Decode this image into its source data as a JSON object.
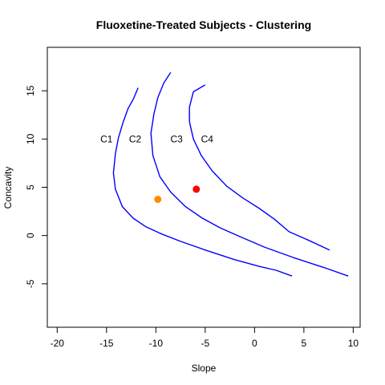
{
  "chart_data": {
    "type": "line",
    "title": "Fluoxetine-Treated Subjects - Clustering",
    "xlabel": "Slope",
    "ylabel": "Concavity",
    "xlim": [
      -21,
      10.7
    ],
    "ylim": [
      -9.5,
      19.5
    ],
    "x_ticks": [
      -20,
      -15,
      -10,
      -5,
      0,
      5,
      10
    ],
    "y_ticks": [
      -5,
      0,
      5,
      10,
      15
    ],
    "grid": false,
    "line_color": "#0000ff",
    "series": [
      {
        "id": "boundary-1",
        "points": [
          [
            -11.8,
            15.3
          ],
          [
            -12.3,
            14.1
          ],
          [
            -12.8,
            13.2
          ],
          [
            -13.3,
            11.8
          ],
          [
            -13.8,
            10.1
          ],
          [
            -14.1,
            8.5
          ],
          [
            -14.3,
            6.5
          ],
          [
            -14.1,
            4.8
          ],
          [
            -13.4,
            3.0
          ],
          [
            -12.3,
            1.8
          ],
          [
            -11.0,
            0.9
          ],
          [
            -9.5,
            0.2
          ],
          [
            -7.5,
            -0.6
          ],
          [
            -5.0,
            -1.5
          ],
          [
            -2.0,
            -2.5
          ],
          [
            0.5,
            -3.2
          ],
          [
            2.2,
            -3.6
          ],
          [
            3.8,
            -4.2
          ]
        ]
      },
      {
        "id": "boundary-2",
        "points": [
          [
            -8.5,
            16.9
          ],
          [
            -9.2,
            15.8
          ],
          [
            -9.8,
            14.3
          ],
          [
            -10.2,
            12.6
          ],
          [
            -10.5,
            10.6
          ],
          [
            -10.3,
            8.3
          ],
          [
            -9.6,
            6.1
          ],
          [
            -8.5,
            4.5
          ],
          [
            -7.0,
            3.0
          ],
          [
            -5.3,
            1.8
          ],
          [
            -3.5,
            0.8
          ],
          [
            -1.5,
            -0.1
          ],
          [
            1.0,
            -1.2
          ],
          [
            4.0,
            -2.3
          ],
          [
            7.0,
            -3.3
          ],
          [
            9.5,
            -4.2
          ]
        ]
      },
      {
        "id": "boundary-3",
        "points": [
          [
            -5.0,
            15.6
          ],
          [
            -6.2,
            14.9
          ],
          [
            -6.6,
            13.3
          ],
          [
            -6.6,
            11.8
          ],
          [
            -6.2,
            10.0
          ],
          [
            -5.4,
            8.3
          ],
          [
            -4.3,
            6.7
          ],
          [
            -2.8,
            5.1
          ],
          [
            -1.2,
            3.9
          ],
          [
            0.5,
            2.8
          ],
          [
            2.0,
            1.7
          ],
          [
            3.5,
            0.4
          ],
          [
            5.5,
            -0.5
          ],
          [
            7.6,
            -1.5
          ]
        ]
      }
    ],
    "points": [
      {
        "id": "orange-point",
        "x": -9.8,
        "y": 3.75,
        "color": "#ff8c00"
      },
      {
        "id": "red-point",
        "x": -5.9,
        "y": 4.8,
        "color": "#ff0000"
      }
    ],
    "annotations": [
      {
        "text": "C1",
        "x": -15.0,
        "y": 9.9
      },
      {
        "text": "C2",
        "x": -12.1,
        "y": 9.9
      },
      {
        "text": "C3",
        "x": -7.9,
        "y": 9.9
      },
      {
        "text": "C4",
        "x": -4.8,
        "y": 9.9
      }
    ]
  }
}
